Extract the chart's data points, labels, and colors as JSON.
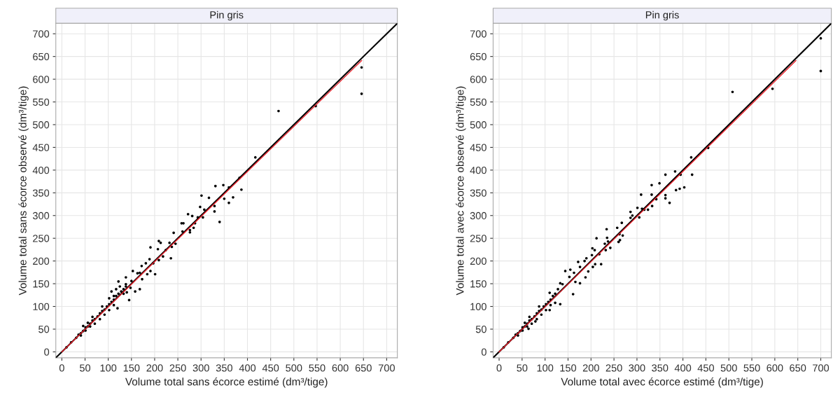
{
  "chart_data": [
    {
      "type": "scatter",
      "title": "Pin gris",
      "xlabel": "Volume total sans écorce estimé (dm³/tige)",
      "ylabel": "Volume total sans écorce observé (dm³/tige)",
      "xlim": [
        -13,
        723
      ],
      "ylim": [
        -13,
        723
      ],
      "xticks": [
        0,
        50,
        100,
        150,
        200,
        250,
        300,
        350,
        400,
        450,
        500,
        550,
        600,
        650,
        700
      ],
      "yticks": [
        0,
        50,
        100,
        150,
        200,
        250,
        300,
        350,
        400,
        450,
        500,
        550,
        600,
        650,
        700
      ],
      "grid": true,
      "legend": false,
      "series": [
        {
          "color": "#000000",
          "marker": "circle",
          "x": [
            646,
            646,
            467,
            547,
            417,
            387,
            383,
            331,
            348,
            360,
            350,
            369,
            360,
            340,
            301,
            317,
            298,
            307,
            329,
            329,
            304,
            293,
            281,
            272,
            258,
            262,
            287,
            284,
            276,
            276,
            260,
            241,
            209,
            213,
            232,
            245,
            237,
            191,
            207,
            224,
            218,
            235,
            209,
            197,
            189,
            181,
            172,
            153,
            163,
            168,
            184,
            201,
            191,
            173,
            168,
            158,
            145,
            138,
            150,
            122,
            138,
            120,
            10,
            20,
            31,
            36,
            41,
            46,
            51,
            56,
            61,
            66,
            71,
            77,
            82,
            87,
            92,
            97,
            102,
            107,
            112,
            117,
            122,
            128,
            133,
            138,
            41,
            51,
            61,
            71,
            82,
            92,
            102,
            112,
            112,
            107,
            117,
            125,
            102,
            87,
            66,
            56,
            46,
            133,
            140,
            148
          ],
          "values": [
            626,
            568,
            530,
            541,
            428,
            357,
            383,
            365,
            367,
            362,
            337,
            340,
            328,
            286,
            344,
            339,
            319,
            313,
            321,
            309,
            296,
            296,
            299,
            303,
            283,
            283,
            283,
            273,
            268,
            263,
            265,
            262,
            244,
            240,
            240,
            238,
            231,
            230,
            226,
            224,
            210,
            206,
            202,
            195,
            204,
            195,
            189,
            178,
            173,
            174,
            171,
            171,
            178,
            160,
            138,
            133,
            114,
            164,
            156,
            155,
            149,
            96,
            10,
            21,
            31,
            38,
            41,
            46,
            54,
            56,
            62,
            69,
            72,
            78,
            85,
            90,
            93,
            100,
            105,
            110,
            115,
            123,
            128,
            133,
            138,
            144,
            36,
            47,
            56,
            62,
            72,
            82,
            92,
            103,
            123,
            133,
            138,
            144,
            118,
            100,
            77,
            64,
            57,
            128,
            131,
            141
          ]
        },
        {
          "type": "line",
          "color": "#000000",
          "marker": "none",
          "line_style": "solid",
          "x": [
            -13,
            723
          ],
          "values": [
            -13,
            723
          ]
        },
        {
          "type": "line",
          "color": "#e8202a",
          "marker": "none",
          "line_style": "solid",
          "x": [
            0,
            646
          ],
          "values": [
            0,
            641
          ]
        }
      ]
    },
    {
      "type": "scatter",
      "title": "Pin gris",
      "xlabel": "Volume total avec écorce estimé (dm³/tige)",
      "ylabel": "Volume total avec écorce observé (dm³/tige)",
      "xlim": [
        -13,
        723
      ],
      "ylim": [
        -13,
        723
      ],
      "xticks": [
        0,
        50,
        100,
        150,
        200,
        250,
        300,
        350,
        400,
        450,
        500,
        550,
        600,
        650,
        700
      ],
      "yticks": [
        0,
        50,
        100,
        150,
        200,
        250,
        300,
        350,
        400,
        450,
        500,
        550,
        600,
        650,
        700
      ],
      "grid": true,
      "legend": false,
      "series": [
        {
          "color": "#000000",
          "marker": "circle",
          "x": [
            700,
            700,
            508,
            595,
            455,
            418,
            420,
            383,
            395,
            362,
            403,
            393,
            385,
            362,
            362,
            371,
            349,
            332,
            332,
            309,
            342,
            333,
            324,
            316,
            311,
            301,
            305,
            290,
            286,
            286,
            267,
            257,
            234,
            262,
            269,
            263,
            260,
            235,
            237,
            230,
            212,
            242,
            232,
            203,
            208,
            218,
            202,
            190,
            186,
            172,
            176,
            209,
            222,
            204,
            194,
            188,
            155,
            144,
            163,
            153,
            166,
            176,
            161,
            133,
            110,
            138,
            64,
            79,
            110,
            122,
            133,
            128,
            10,
            20,
            31,
            36,
            41,
            46,
            51,
            56,
            61,
            66,
            71,
            77,
            82,
            87,
            92,
            97,
            102,
            107,
            112,
            117,
            122,
            41,
            51,
            61,
            71,
            82,
            92,
            102,
            112,
            87,
            66,
            56
          ],
          "values": [
            690,
            618,
            572,
            579,
            449,
            428,
            390,
            397,
            390,
            390,
            362,
            359,
            356,
            345,
            338,
            328,
            371,
            367,
            346,
            346,
            336,
            321,
            313,
            313,
            315,
            317,
            296,
            300,
            308,
            295,
            284,
            273,
            270,
            259,
            256,
            246,
            242,
            251,
            243,
            238,
            250,
            229,
            224,
            228,
            224,
            215,
            213,
            206,
            200,
            198,
            187,
            193,
            193,
            187,
            177,
            164,
            181,
            178,
            174,
            165,
            154,
            151,
            127,
            105,
            130,
            149,
            51,
            67,
            92,
            108,
            151,
            138,
            10,
            21,
            31,
            38,
            41,
            46,
            54,
            56,
            62,
            69,
            72,
            78,
            85,
            90,
            93,
            100,
            105,
            110,
            115,
            123,
            128,
            36,
            47,
            56,
            62,
            72,
            82,
            92,
            103,
            100,
            77,
            64
          ]
        },
        {
          "type": "line",
          "color": "#000000",
          "marker": "none",
          "line_style": "solid",
          "x": [
            -13,
            723
          ],
          "values": [
            -13,
            723
          ]
        },
        {
          "type": "line",
          "color": "#e8202a",
          "marker": "none",
          "line_style": "solid",
          "x": [
            0,
            646
          ],
          "values": [
            0,
            641
          ]
        }
      ]
    }
  ]
}
